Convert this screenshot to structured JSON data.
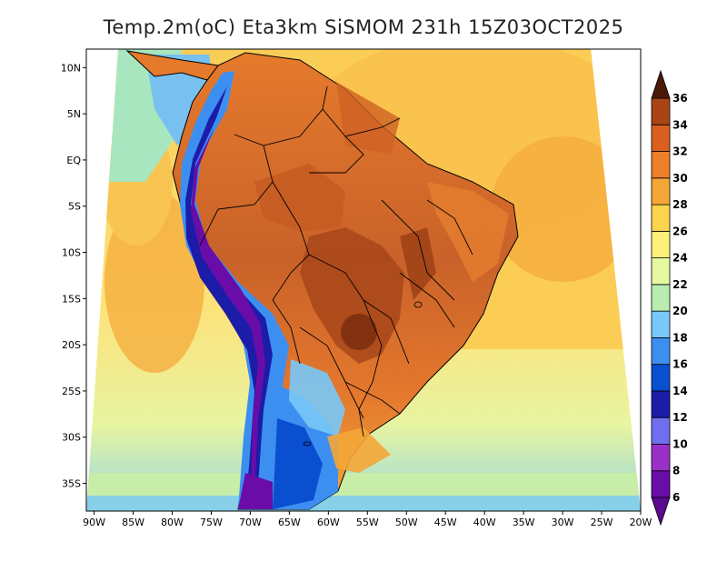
{
  "title": "Temp.2m(oC) Eta3km SiSMOM 231h 15Z03OCT2025",
  "map": {
    "variable": "2 m air temperature",
    "units": "oC",
    "region": "South America",
    "lon_range": [
      -91,
      -20
    ],
    "lat_range": [
      -38,
      12
    ],
    "lat_ticks": [
      {
        "value": 10,
        "label": "10N"
      },
      {
        "value": 5,
        "label": "5N"
      },
      {
        "value": 0,
        "label": "EQ"
      },
      {
        "value": -5,
        "label": "5S"
      },
      {
        "value": -10,
        "label": "10S"
      },
      {
        "value": -15,
        "label": "15S"
      },
      {
        "value": -20,
        "label": "20S"
      },
      {
        "value": -25,
        "label": "25S"
      },
      {
        "value": -30,
        "label": "30S"
      },
      {
        "value": -35,
        "label": "35S"
      }
    ],
    "lon_ticks": [
      {
        "value": -90,
        "label": "90W"
      },
      {
        "value": -85,
        "label": "85W"
      },
      {
        "value": -80,
        "label": "80W"
      },
      {
        "value": -75,
        "label": "75W"
      },
      {
        "value": -70,
        "label": "70W"
      },
      {
        "value": -65,
        "label": "65W"
      },
      {
        "value": -60,
        "label": "60W"
      },
      {
        "value": -55,
        "label": "55W"
      },
      {
        "value": -50,
        "label": "50W"
      },
      {
        "value": -45,
        "label": "45W"
      },
      {
        "value": -40,
        "label": "40W"
      },
      {
        "value": -35,
        "label": "35W"
      },
      {
        "value": -30,
        "label": "30W"
      },
      {
        "value": -25,
        "label": "25W"
      },
      {
        "value": -20,
        "label": "20W"
      }
    ]
  },
  "colorbar": {
    "levels": [
      6,
      8,
      10,
      12,
      14,
      16,
      18,
      20,
      22,
      24,
      26,
      28,
      30,
      32,
      34,
      36
    ],
    "colors": [
      "#6a0da8",
      "#9b30c8",
      "#6f6ff0",
      "#1c1ca8",
      "#0a4fd0",
      "#3c8ff0",
      "#78c8f8",
      "#b8ecb0",
      "#e6f8a0",
      "#fff07a",
      "#fbd44e",
      "#f4a637",
      "#eb7f2a",
      "#d9601e",
      "#a84415",
      "#7a2e0e",
      "#5a1f08"
    ],
    "extend_low_color": "#5a0a8c",
    "extend_high_color": "#4a1a06"
  }
}
